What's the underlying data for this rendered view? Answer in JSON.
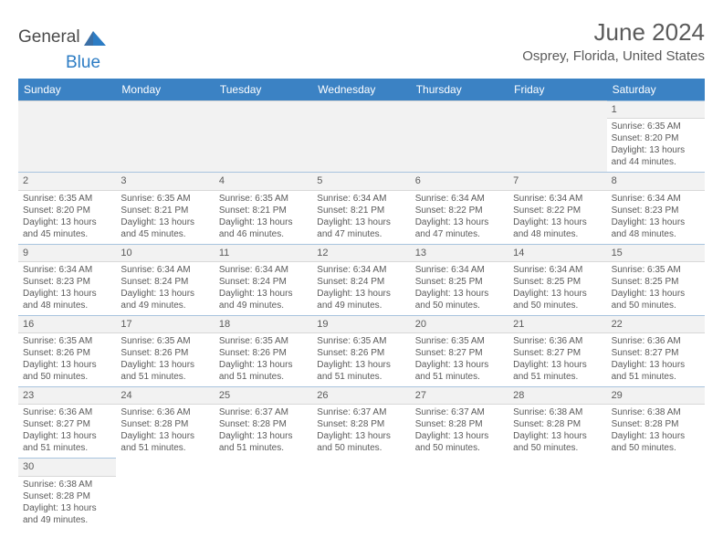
{
  "brand": {
    "name1": "General",
    "name2": "Blue"
  },
  "title": "June 2024",
  "location": "Osprey, Florida, United States",
  "colors": {
    "header_bg": "#3b82c4",
    "header_text": "#ffffff",
    "cell_border": "#a8c4de",
    "daynum_bg": "#f2f2f2",
    "text": "#5a5a5a"
  },
  "weekdays": [
    "Sunday",
    "Monday",
    "Tuesday",
    "Wednesday",
    "Thursday",
    "Friday",
    "Saturday"
  ],
  "first_weekday_index": 6,
  "days": [
    {
      "n": 1,
      "sunrise": "6:35 AM",
      "sunset": "8:20 PM",
      "daylight": "13 hours and 44 minutes."
    },
    {
      "n": 2,
      "sunrise": "6:35 AM",
      "sunset": "8:20 PM",
      "daylight": "13 hours and 45 minutes."
    },
    {
      "n": 3,
      "sunrise": "6:35 AM",
      "sunset": "8:21 PM",
      "daylight": "13 hours and 45 minutes."
    },
    {
      "n": 4,
      "sunrise": "6:35 AM",
      "sunset": "8:21 PM",
      "daylight": "13 hours and 46 minutes."
    },
    {
      "n": 5,
      "sunrise": "6:34 AM",
      "sunset": "8:21 PM",
      "daylight": "13 hours and 47 minutes."
    },
    {
      "n": 6,
      "sunrise": "6:34 AM",
      "sunset": "8:22 PM",
      "daylight": "13 hours and 47 minutes."
    },
    {
      "n": 7,
      "sunrise": "6:34 AM",
      "sunset": "8:22 PM",
      "daylight": "13 hours and 48 minutes."
    },
    {
      "n": 8,
      "sunrise": "6:34 AM",
      "sunset": "8:23 PM",
      "daylight": "13 hours and 48 minutes."
    },
    {
      "n": 9,
      "sunrise": "6:34 AM",
      "sunset": "8:23 PM",
      "daylight": "13 hours and 48 minutes."
    },
    {
      "n": 10,
      "sunrise": "6:34 AM",
      "sunset": "8:24 PM",
      "daylight": "13 hours and 49 minutes."
    },
    {
      "n": 11,
      "sunrise": "6:34 AM",
      "sunset": "8:24 PM",
      "daylight": "13 hours and 49 minutes."
    },
    {
      "n": 12,
      "sunrise": "6:34 AM",
      "sunset": "8:24 PM",
      "daylight": "13 hours and 49 minutes."
    },
    {
      "n": 13,
      "sunrise": "6:34 AM",
      "sunset": "8:25 PM",
      "daylight": "13 hours and 50 minutes."
    },
    {
      "n": 14,
      "sunrise": "6:34 AM",
      "sunset": "8:25 PM",
      "daylight": "13 hours and 50 minutes."
    },
    {
      "n": 15,
      "sunrise": "6:35 AM",
      "sunset": "8:25 PM",
      "daylight": "13 hours and 50 minutes."
    },
    {
      "n": 16,
      "sunrise": "6:35 AM",
      "sunset": "8:26 PM",
      "daylight": "13 hours and 50 minutes."
    },
    {
      "n": 17,
      "sunrise": "6:35 AM",
      "sunset": "8:26 PM",
      "daylight": "13 hours and 51 minutes."
    },
    {
      "n": 18,
      "sunrise": "6:35 AM",
      "sunset": "8:26 PM",
      "daylight": "13 hours and 51 minutes."
    },
    {
      "n": 19,
      "sunrise": "6:35 AM",
      "sunset": "8:26 PM",
      "daylight": "13 hours and 51 minutes."
    },
    {
      "n": 20,
      "sunrise": "6:35 AM",
      "sunset": "8:27 PM",
      "daylight": "13 hours and 51 minutes."
    },
    {
      "n": 21,
      "sunrise": "6:36 AM",
      "sunset": "8:27 PM",
      "daylight": "13 hours and 51 minutes."
    },
    {
      "n": 22,
      "sunrise": "6:36 AM",
      "sunset": "8:27 PM",
      "daylight": "13 hours and 51 minutes."
    },
    {
      "n": 23,
      "sunrise": "6:36 AM",
      "sunset": "8:27 PM",
      "daylight": "13 hours and 51 minutes."
    },
    {
      "n": 24,
      "sunrise": "6:36 AM",
      "sunset": "8:28 PM",
      "daylight": "13 hours and 51 minutes."
    },
    {
      "n": 25,
      "sunrise": "6:37 AM",
      "sunset": "8:28 PM",
      "daylight": "13 hours and 51 minutes."
    },
    {
      "n": 26,
      "sunrise": "6:37 AM",
      "sunset": "8:28 PM",
      "daylight": "13 hours and 50 minutes."
    },
    {
      "n": 27,
      "sunrise": "6:37 AM",
      "sunset": "8:28 PM",
      "daylight": "13 hours and 50 minutes."
    },
    {
      "n": 28,
      "sunrise": "6:38 AM",
      "sunset": "8:28 PM",
      "daylight": "13 hours and 50 minutes."
    },
    {
      "n": 29,
      "sunrise": "6:38 AM",
      "sunset": "8:28 PM",
      "daylight": "13 hours and 50 minutes."
    },
    {
      "n": 30,
      "sunrise": "6:38 AM",
      "sunset": "8:28 PM",
      "daylight": "13 hours and 49 minutes."
    }
  ],
  "labels": {
    "sunrise": "Sunrise: ",
    "sunset": "Sunset: ",
    "daylight": "Daylight: "
  }
}
